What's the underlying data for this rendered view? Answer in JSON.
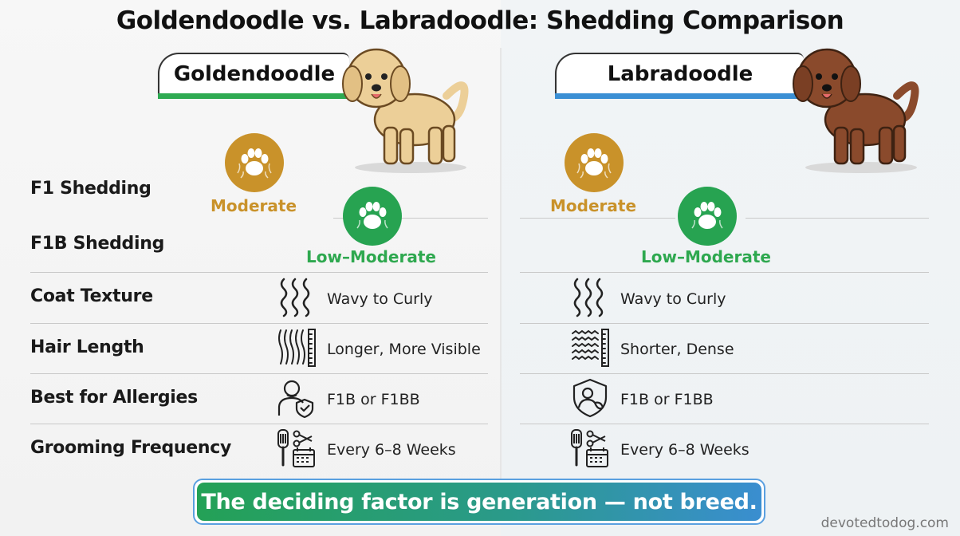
{
  "title": "Goldendoodle vs. Labradoodle: Shedding Comparison",
  "breeds": {
    "left": {
      "name": "Goldendoodle",
      "accent": "#2eaa52",
      "coat_color": "#e9c98f"
    },
    "right": {
      "name": "Labradoodle",
      "accent": "#3b8fd4",
      "coat_color": "#8a4a2c"
    }
  },
  "rows": {
    "f1": "F1 Shedding",
    "f1b": "F1B Shedding",
    "coat": "Coat Texture",
    "hair": "Hair Length",
    "allergy": "Best for Allergies",
    "grooming": "Grooming Frequency"
  },
  "left": {
    "f1_level": "Moderate",
    "f1b_level": "Low–Moderate",
    "coat": "Wavy to Curly",
    "hair": "Longer, More Visible",
    "allergy": "F1B or F1BB",
    "grooming": "Every 6–8 Weeks"
  },
  "right": {
    "f1_level": "Moderate",
    "f1b_level": "Low–Moderate",
    "coat": "Wavy to Curly",
    "hair": "Shorter, Dense",
    "allergy": "F1B or F1BB",
    "grooming": "Every 6–8 Weeks"
  },
  "colors": {
    "moderate": "#c9922a",
    "low_moderate": "#27a351"
  },
  "icons": {
    "dog_left": "goldendoodle-dog-icon",
    "dog_right": "labradoodle-dog-icon",
    "moderate": "paw-shedding-icon",
    "low_moderate": "paw-icon",
    "coat": "wavy-lines-icon",
    "hair": "hair-ruler-icon",
    "allergy_left": "person-shield-icon",
    "allergy_right": "shield-person-icon",
    "grooming": "brush-scissors-calendar-icon"
  },
  "banner": "The deciding factor is generation — not breed.",
  "site": "devotedtodog.com"
}
